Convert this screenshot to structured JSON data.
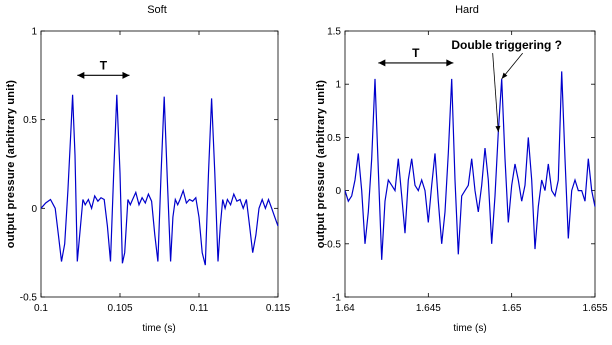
{
  "figure": {
    "ylabel": "output pressure (arbitrary unit)"
  },
  "chart_data": [
    {
      "type": "line",
      "title": "Soft",
      "xlabel": "time (s)",
      "ylabel": "output pressure (arbitrary unit)",
      "xlim": [
        0.1,
        0.115
      ],
      "ylim": [
        -0.5,
        1
      ],
      "xticks": [
        0.1,
        0.105,
        0.11,
        0.115
      ],
      "xtick_labels": [
        "0.1",
        "0.105",
        "0.11",
        "0.115"
      ],
      "yticks": [
        -0.5,
        0,
        0.5,
        1
      ],
      "ytick_labels": [
        "-0.5",
        "0",
        "0.5",
        "1"
      ],
      "grid": false,
      "line_color": "#0000cc",
      "series": [
        {
          "x": [
            0.1,
            0.1003,
            0.1006,
            0.1009,
            0.1011,
            0.1013,
            0.1015,
            0.1017,
            0.1019,
            0.102,
            0.10215,
            0.1023,
            0.1025,
            0.10265,
            0.1028,
            0.103,
            0.1032,
            0.1034,
            0.1036,
            0.1038,
            0.104,
            0.1042,
            0.1044,
            0.1046,
            0.1048,
            0.105,
            0.10515,
            0.1053,
            0.1055,
            0.10565,
            0.1058,
            0.106,
            0.1062,
            0.1064,
            0.1066,
            0.1068,
            0.107,
            0.1072,
            0.1074,
            0.1076,
            0.1078,
            0.108,
            0.1082,
            0.10835,
            0.1085,
            0.10865,
            0.1088,
            0.109,
            0.1092,
            0.1094,
            0.1096,
            0.1098,
            0.11,
            0.1102,
            0.1104,
            0.1106,
            0.1108,
            0.111,
            0.1112,
            0.11135,
            0.1115,
            0.11165,
            0.1118,
            0.112,
            0.1122,
            0.1124,
            0.1126,
            0.1128,
            0.113,
            0.1132,
            0.1134,
            0.1136,
            0.1138,
            0.114,
            0.1142,
            0.1144,
            0.1146,
            0.1148,
            0.115
          ],
          "y": [
            0.0,
            0.03,
            0.05,
            0.0,
            -0.15,
            -0.3,
            -0.2,
            0.1,
            0.45,
            0.64,
            0.3,
            -0.3,
            -0.1,
            0.05,
            0.02,
            0.05,
            0.0,
            0.07,
            0.04,
            0.06,
            0.05,
            -0.1,
            -0.3,
            0.2,
            0.64,
            0.2,
            -0.31,
            -0.25,
            0.05,
            0.02,
            0.05,
            0.09,
            0.02,
            0.06,
            0.03,
            0.08,
            0.04,
            -0.15,
            -0.3,
            0.2,
            0.63,
            0.15,
            -0.3,
            -0.05,
            0.05,
            0.02,
            0.05,
            0.1,
            0.03,
            0.05,
            0.04,
            0.06,
            -0.05,
            -0.25,
            -0.32,
            0.2,
            0.62,
            0.2,
            -0.3,
            -0.1,
            0.05,
            0.0,
            0.05,
            0.02,
            0.08,
            0.04,
            0.05,
            0.0,
            0.05,
            -0.1,
            -0.25,
            -0.15,
            0.0,
            0.05,
            0.0,
            0.05,
            0.0,
            -0.05,
            -0.1
          ]
        }
      ],
      "annotations": [
        {
          "text": "T",
          "x_from": 0.1023,
          "x_to": 0.1056,
          "y": 0.75
        }
      ]
    },
    {
      "type": "line",
      "title": "Hard",
      "xlabel": "time (s)",
      "ylabel": "output pressure (arbitrary unit)",
      "xlim": [
        1.64,
        1.655
      ],
      "ylim": [
        -1,
        1.5
      ],
      "xticks": [
        1.64,
        1.645,
        1.65,
        1.655
      ],
      "xtick_labels": [
        "1.64",
        "1.645",
        "1.65",
        "1.655"
      ],
      "yticks": [
        -1,
        -0.5,
        0,
        0.5,
        1,
        1.5
      ],
      "ytick_labels": [
        "-1",
        "-0.5",
        "0",
        "0.5",
        "1",
        "1.5"
      ],
      "grid": false,
      "line_color": "#0000cc",
      "series": [
        {
          "x": [
            1.64,
            1.6402,
            1.6404,
            1.6406,
            1.6408,
            1.641,
            1.6412,
            1.6414,
            1.6416,
            1.6418,
            1.642,
            1.6422,
            1.6424,
            1.6426,
            1.6428,
            1.643,
            1.6432,
            1.6434,
            1.6436,
            1.6438,
            1.644,
            1.6442,
            1.6444,
            1.6446,
            1.6448,
            1.645,
            1.6452,
            1.6454,
            1.6456,
            1.6458,
            1.646,
            1.6462,
            1.6464,
            1.6466,
            1.6468,
            1.647,
            1.6472,
            1.6474,
            1.6476,
            1.6478,
            1.648,
            1.6482,
            1.6484,
            1.6486,
            1.6488,
            1.649,
            1.6492,
            1.6494,
            1.6496,
            1.6498,
            1.65,
            1.6502,
            1.6504,
            1.6506,
            1.6508,
            1.651,
            1.6512,
            1.6514,
            1.6516,
            1.6518,
            1.652,
            1.6522,
            1.6524,
            1.6526,
            1.6528,
            1.653,
            1.6532,
            1.6534,
            1.6536,
            1.6538,
            1.654,
            1.6542,
            1.6544,
            1.6546,
            1.6548,
            1.655
          ],
          "y": [
            0.0,
            -0.1,
            -0.05,
            0.1,
            0.35,
            0.0,
            -0.5,
            -0.2,
            0.3,
            1.05,
            0.2,
            -0.65,
            -0.1,
            0.1,
            0.05,
            0.0,
            0.3,
            -0.05,
            -0.4,
            0.1,
            0.3,
            0.05,
            0.0,
            0.1,
            0.0,
            -0.3,
            0.05,
            0.35,
            -0.1,
            -0.5,
            -0.2,
            0.35,
            1.05,
            0.1,
            -0.6,
            -0.05,
            0.0,
            0.05,
            0.3,
            0.0,
            -0.2,
            0.05,
            0.4,
            0.1,
            -0.5,
            -0.05,
            0.55,
            1.05,
            0.3,
            -0.3,
            0.05,
            0.25,
            0.1,
            -0.1,
            0.05,
            0.5,
            0.1,
            -0.55,
            -0.15,
            0.1,
            0.0,
            0.25,
            0.0,
            -0.05,
            0.1,
            1.12,
            0.3,
            -0.45,
            0.0,
            0.1,
            0.0,
            0.0,
            -0.1,
            0.3,
            0.0,
            -0.15
          ],
          "_note_unused": ""
        }
      ],
      "annotations": [
        {
          "text": "T",
          "x_from": 1.642,
          "x_to": 1.6465,
          "y": 1.2
        },
        {
          "text": "Double triggering ?",
          "x": 1.6497,
          "y": 1.33
        }
      ]
    }
  ]
}
